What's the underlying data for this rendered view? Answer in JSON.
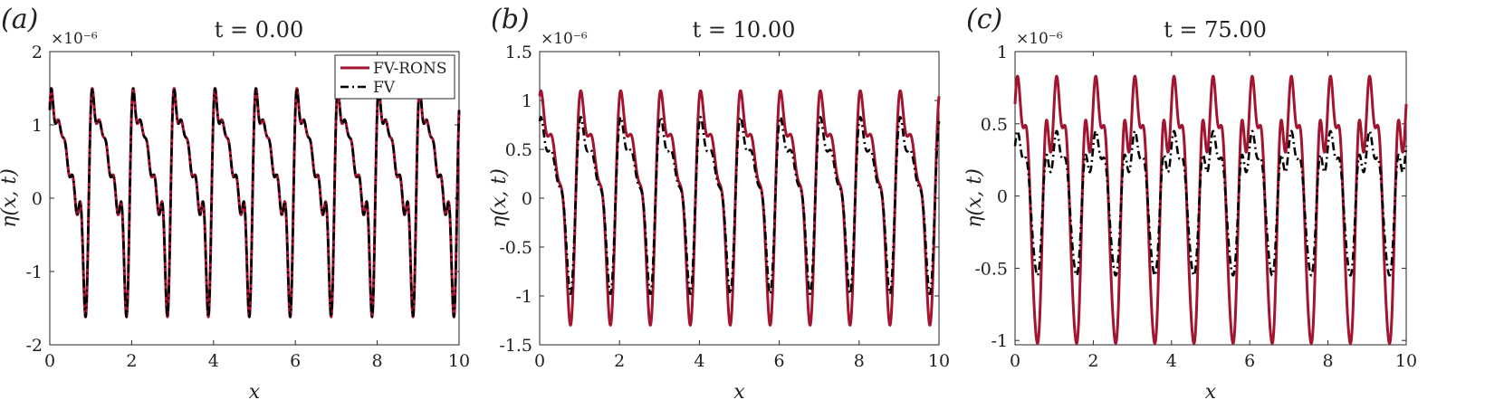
{
  "chart_data": [
    {
      "type": "line",
      "panel_label": "(a)",
      "title": "t = 0.00",
      "exponent": "×10⁻⁶",
      "xlabel": "x",
      "ylabel": "η(x, t)",
      "xlim": [
        0,
        10
      ],
      "ylim": [
        -2,
        2
      ],
      "xticks": [
        0,
        2,
        4,
        6,
        8,
        10
      ],
      "xtick_labels": [
        "0",
        "2",
        "4",
        "6",
        "8",
        "10"
      ],
      "yticks": [
        -2,
        -1,
        0,
        1,
        2
      ],
      "ytick_labels": [
        "-2",
        "-1",
        "0",
        "1",
        "2"
      ],
      "legend": [
        "FV-RONS",
        "FV"
      ],
      "legend_position": "top-right",
      "series": [
        {
          "name": "FV-RONS",
          "color": "#a2142f",
          "style": "solid",
          "period": 1,
          "max": 1.5,
          "min": -1.62
        },
        {
          "name": "FV",
          "color": "#000000",
          "style": "dash-dot",
          "period": 1,
          "max": 1.5,
          "min": -1.62
        }
      ]
    },
    {
      "type": "line",
      "panel_label": "(b)",
      "title": "t = 10.00",
      "exponent": "×10⁻⁶",
      "xlabel": "x",
      "ylabel": "η(x, t)",
      "xlim": [
        0,
        10
      ],
      "ylim": [
        -1.5,
        1.5
      ],
      "xticks": [
        0,
        2,
        4,
        6,
        8,
        10
      ],
      "xtick_labels": [
        "0",
        "2",
        "4",
        "6",
        "8",
        "10"
      ],
      "yticks": [
        -1.5,
        -1,
        -0.5,
        0,
        0.5,
        1,
        1.5
      ],
      "ytick_labels": [
        "-1.5",
        "-1",
        "-0.5",
        "0",
        "0.5",
        "1",
        "1.5"
      ],
      "series": [
        {
          "name": "FV-RONS",
          "color": "#a2142f",
          "style": "solid",
          "period": 1,
          "max": 1.1,
          "min": -1.3
        },
        {
          "name": "FV",
          "color": "#000000",
          "style": "dash-dot",
          "period": 1,
          "max": 0.83,
          "min": -0.98
        }
      ]
    },
    {
      "type": "line",
      "panel_label": "(c)",
      "title": "t = 75.00",
      "exponent": "×10⁻⁶",
      "xlabel": "x",
      "ylabel": "η(x, t)",
      "xlim": [
        0,
        10
      ],
      "ylim": [
        -1.03,
        1
      ],
      "xticks": [
        0,
        2,
        4,
        6,
        8,
        10
      ],
      "xtick_labels": [
        "0",
        "2",
        "4",
        "6",
        "8",
        "10"
      ],
      "yticks": [
        -1,
        -0.5,
        0,
        0.5,
        1
      ],
      "ytick_labels": [
        "-1",
        "-0.5",
        "0",
        "0.5",
        "1"
      ],
      "series": [
        {
          "name": "FV-RONS",
          "color": "#a2142f",
          "style": "solid",
          "period": 1,
          "max": 0.83,
          "min": -1.02
        },
        {
          "name": "FV",
          "color": "#000000",
          "style": "dash-dot",
          "period": 1,
          "max": 0.45,
          "min": -0.55
        }
      ]
    }
  ]
}
